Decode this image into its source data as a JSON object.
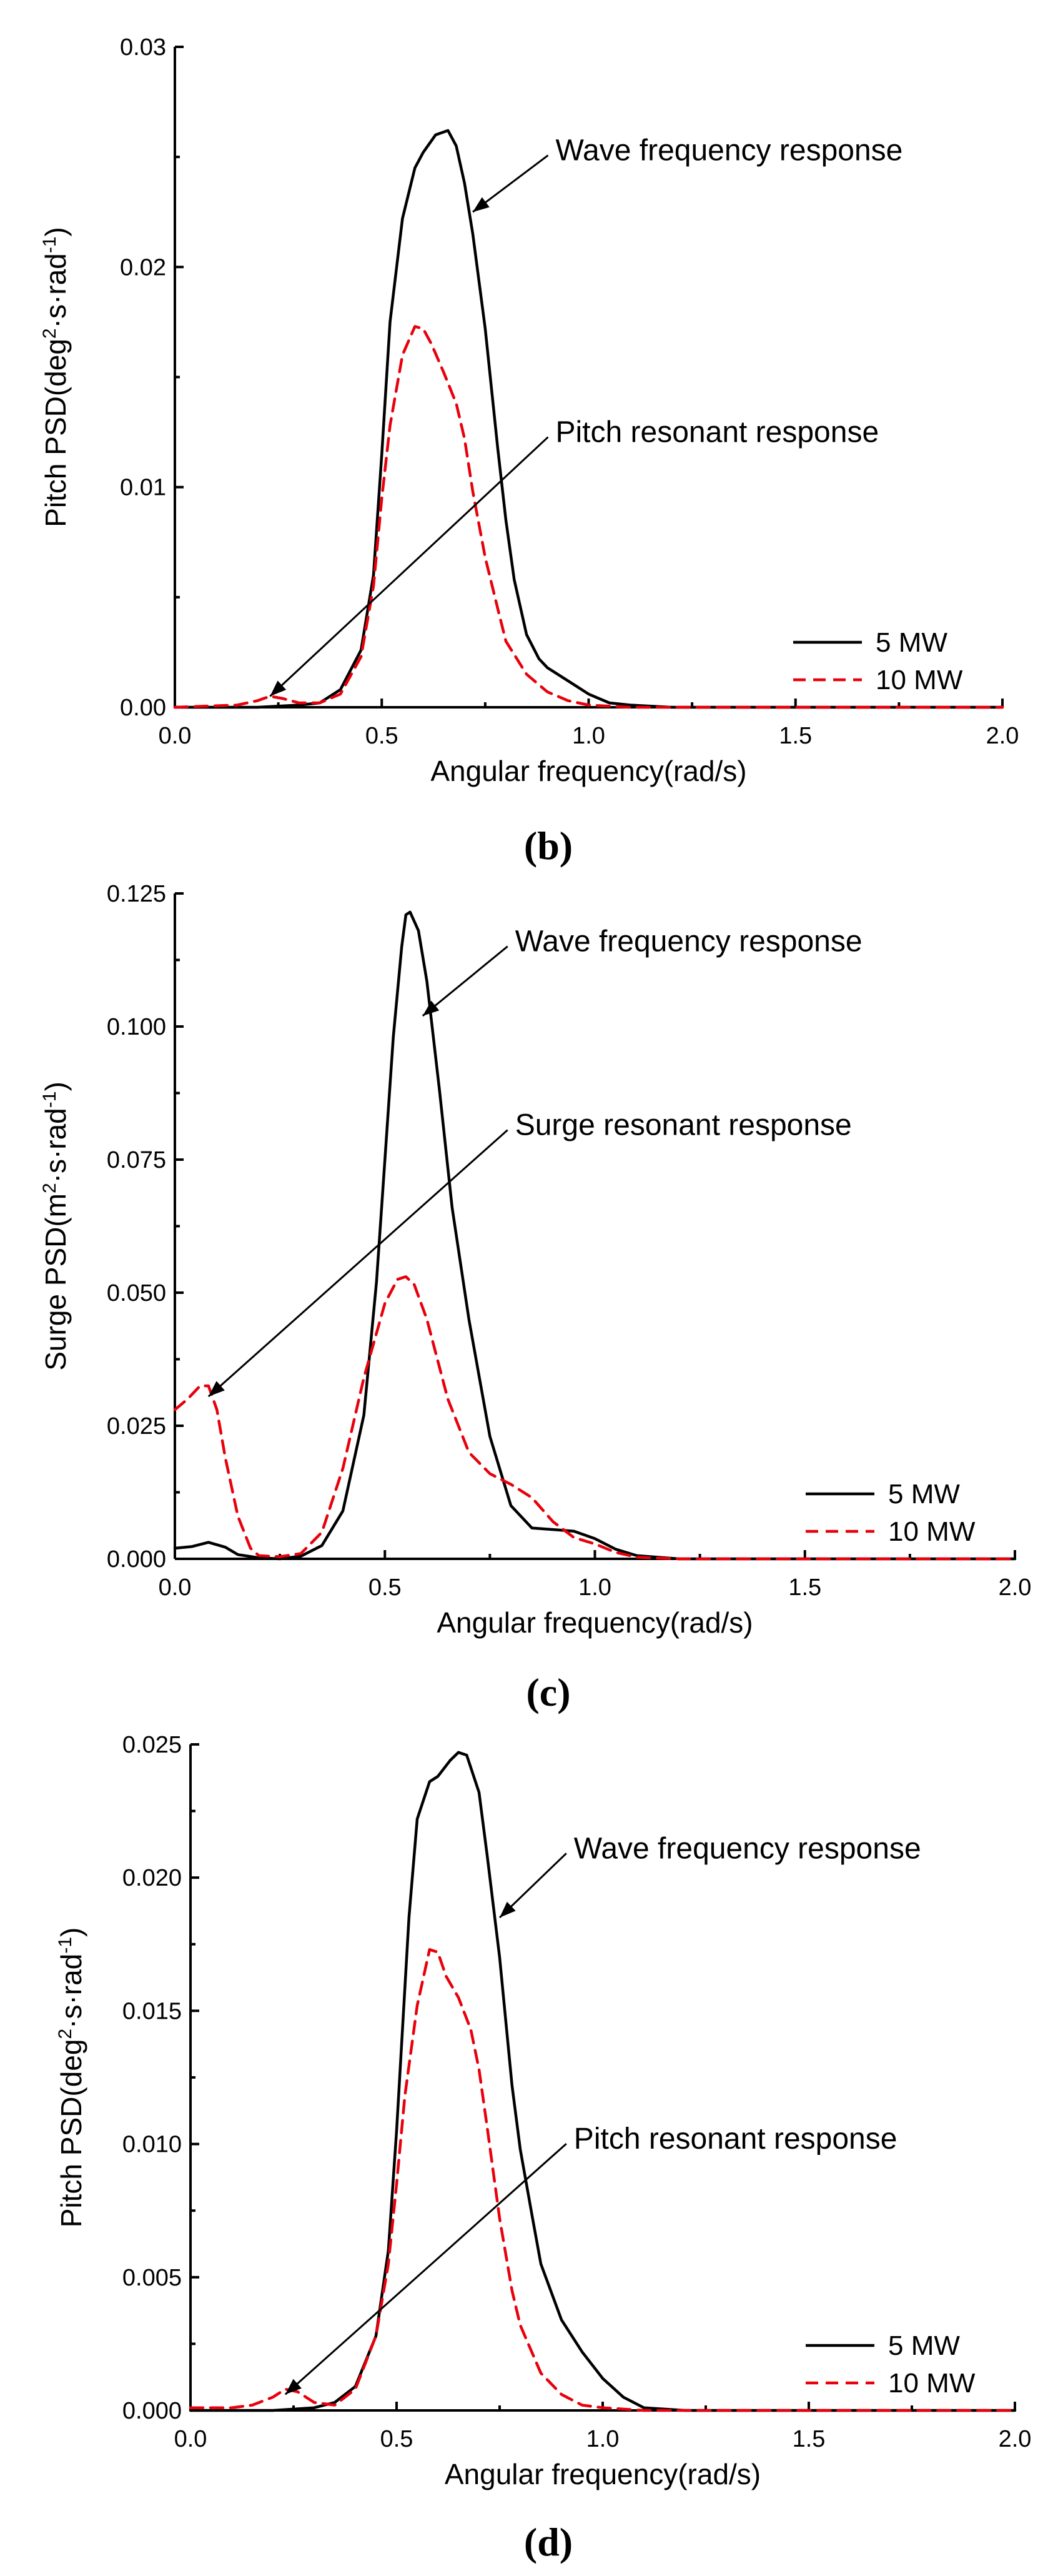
{
  "chart_data": [
    {
      "type": "line",
      "panel_label": "(b)",
      "xlabel": "Angular frequency(rad/s)",
      "ylabel": "Pitch PSD(deg²·s·rad⁻¹)",
      "ylabel_parts": [
        "Pitch PSD(deg",
        "2",
        "·s·rad",
        "-1",
        ")"
      ],
      "xlim": [
        0,
        2.0
      ],
      "ylim": [
        0,
        0.03
      ],
      "xticks": [
        "0.0",
        "0.5",
        "1.0",
        "1.5",
        "2.0"
      ],
      "xtick_values": [
        0,
        0.5,
        1.0,
        1.5,
        2.0
      ],
      "yticks": [
        "0.00",
        "0.01",
        "0.02",
        "0.03"
      ],
      "ytick_values": [
        0,
        0.01,
        0.02,
        0.03
      ],
      "legend": {
        "position": "bottom-right",
        "entries": [
          "5 MW",
          "10 MW"
        ]
      },
      "annotations": [
        {
          "text": "Wave frequency response",
          "xy": [
            0.72,
            0.0225
          ],
          "text_xy": [
            0.92,
            0.0253
          ]
        },
        {
          "text": "Pitch resonant response",
          "xy": [
            0.23,
            0.0005
          ],
          "text_xy": [
            0.92,
            0.0125
          ]
        }
      ],
      "series": [
        {
          "name": "5 MW",
          "color": "#000000",
          "dash": "solid",
          "x": [
            0,
            0.2,
            0.3,
            0.35,
            0.4,
            0.45,
            0.48,
            0.5,
            0.52,
            0.55,
            0.58,
            0.6,
            0.63,
            0.66,
            0.68,
            0.7,
            0.72,
            0.75,
            0.78,
            0.8,
            0.82,
            0.85,
            0.88,
            0.9,
            0.95,
            1.0,
            1.05,
            1.1,
            1.2,
            1.5,
            2.0
          ],
          "y": [
            0,
            0,
            0.0001,
            0.0002,
            0.0008,
            0.0026,
            0.006,
            0.0115,
            0.0175,
            0.0222,
            0.0245,
            0.0252,
            0.026,
            0.0262,
            0.0255,
            0.0238,
            0.0215,
            0.0172,
            0.0118,
            0.0085,
            0.0058,
            0.0033,
            0.0022,
            0.0018,
            0.0012,
            0.0006,
            0.0002,
            0.0001,
            0,
            0,
            0
          ]
        },
        {
          "name": "10 MW",
          "color": "#e8000b",
          "dash": "dashed",
          "x": [
            0,
            0.15,
            0.2,
            0.23,
            0.26,
            0.3,
            0.35,
            0.4,
            0.45,
            0.48,
            0.5,
            0.52,
            0.55,
            0.58,
            0.6,
            0.62,
            0.65,
            0.68,
            0.7,
            0.72,
            0.75,
            0.78,
            0.8,
            0.85,
            0.9,
            0.95,
            1.0,
            1.1,
            2.0
          ],
          "y": [
            0,
            0.0001,
            0.0003,
            0.0005,
            0.0004,
            0.0002,
            0.0002,
            0.0006,
            0.0023,
            0.0055,
            0.0095,
            0.0128,
            0.016,
            0.0173,
            0.0172,
            0.0165,
            0.0152,
            0.0138,
            0.0122,
            0.0098,
            0.0068,
            0.0045,
            0.003,
            0.0015,
            0.0007,
            0.0003,
            0.0001,
            0,
            0
          ]
        }
      ]
    },
    {
      "type": "line",
      "panel_label": "(c)",
      "xlabel": "Angular frequency(rad/s)",
      "ylabel": "Surge PSD(m²·s·rad⁻¹)",
      "ylabel_parts": [
        "Surge PSD(m",
        "2",
        "·s·rad",
        "-1",
        ")"
      ],
      "xlim": [
        0,
        2.0
      ],
      "ylim": [
        0,
        0.125
      ],
      "xticks": [
        "0.0",
        "0.5",
        "1.0",
        "1.5",
        "2.0"
      ],
      "xtick_values": [
        0,
        0.5,
        1.0,
        1.5,
        2.0
      ],
      "yticks": [
        "0.000",
        "0.025",
        "0.050",
        "0.075",
        "0.100",
        "0.125"
      ],
      "ytick_values": [
        0,
        0.025,
        0.05,
        0.075,
        0.1,
        0.125
      ],
      "legend": {
        "position": "bottom-right",
        "entries": [
          "5 MW",
          "10 MW"
        ]
      },
      "annotations": [
        {
          "text": "Wave frequency response",
          "xy": [
            0.59,
            0.102
          ],
          "text_xy": [
            0.81,
            0.116
          ]
        },
        {
          "text": "Surge resonant response",
          "xy": [
            0.08,
            0.0305
          ],
          "text_xy": [
            0.81,
            0.0815
          ]
        }
      ],
      "series": [
        {
          "name": "5 MW",
          "color": "#000000",
          "dash": "solid",
          "x": [
            0,
            0.04,
            0.08,
            0.12,
            0.15,
            0.2,
            0.25,
            0.3,
            0.35,
            0.4,
            0.45,
            0.48,
            0.5,
            0.52,
            0.54,
            0.55,
            0.56,
            0.58,
            0.6,
            0.63,
            0.66,
            0.7,
            0.75,
            0.8,
            0.85,
            0.9,
            0.95,
            1.0,
            1.05,
            1.1,
            1.2,
            2.0
          ],
          "y": [
            0.002,
            0.0023,
            0.0031,
            0.0022,
            0.0008,
            0.0002,
            0,
            0.0005,
            0.0025,
            0.009,
            0.027,
            0.052,
            0.075,
            0.098,
            0.115,
            0.121,
            0.1215,
            0.118,
            0.1085,
            0.088,
            0.066,
            0.045,
            0.023,
            0.01,
            0.0058,
            0.0055,
            0.0052,
            0.0038,
            0.0018,
            0.0006,
            0,
            0
          ]
        },
        {
          "name": "10 MW",
          "color": "#e8000b",
          "dash": "dashed",
          "x": [
            0,
            0.03,
            0.06,
            0.08,
            0.1,
            0.12,
            0.15,
            0.18,
            0.2,
            0.25,
            0.3,
            0.35,
            0.4,
            0.45,
            0.5,
            0.53,
            0.55,
            0.57,
            0.6,
            0.65,
            0.7,
            0.75,
            0.8,
            0.85,
            0.9,
            0.95,
            1.0,
            1.05,
            1.1,
            1.2,
            2.0
          ],
          "y": [
            0.028,
            0.03,
            0.0325,
            0.0325,
            0.028,
            0.019,
            0.008,
            0.002,
            0.0006,
            0.0004,
            0.001,
            0.005,
            0.017,
            0.034,
            0.048,
            0.0525,
            0.053,
            0.0515,
            0.045,
            0.03,
            0.02,
            0.016,
            0.014,
            0.0115,
            0.007,
            0.004,
            0.0028,
            0.0012,
            0.0003,
            0,
            0
          ]
        }
      ]
    },
    {
      "type": "line",
      "panel_label": "(d)",
      "xlabel": "Angular frequency(rad/s)",
      "ylabel": "Pitch PSD(deg²·s·rad⁻¹)",
      "ylabel_parts": [
        "Pitch PSD(deg",
        "2",
        "·s·rad",
        "-1",
        ")"
      ],
      "xlim": [
        0,
        2.0
      ],
      "ylim": [
        0,
        0.025
      ],
      "xticks": [
        "0.0",
        "0.5",
        "1.0",
        "1.5",
        "2.0"
      ],
      "xtick_values": [
        0,
        0.5,
        1.0,
        1.5,
        2.0
      ],
      "yticks": [
        "0.000",
        "0.005",
        "0.010",
        "0.015",
        "0.020",
        "0.025"
      ],
      "ytick_values": [
        0,
        0.005,
        0.01,
        0.015,
        0.02,
        0.025
      ],
      "legend": {
        "position": "bottom-right",
        "entries": [
          "5 MW",
          "10 MW"
        ]
      },
      "annotations": [
        {
          "text": "Wave frequency response",
          "xy": [
            0.75,
            0.0185
          ],
          "text_xy": [
            0.93,
            0.0211
          ]
        },
        {
          "text": "Pitch resonant response",
          "xy": [
            0.23,
            0.0006
          ],
          "text_xy": [
            0.93,
            0.0102
          ]
        }
      ],
      "series": [
        {
          "name": "5 MW",
          "color": "#000000",
          "dash": "solid",
          "x": [
            0,
            0.2,
            0.3,
            0.35,
            0.4,
            0.45,
            0.48,
            0.5,
            0.53,
            0.55,
            0.58,
            0.6,
            0.63,
            0.65,
            0.67,
            0.7,
            0.72,
            0.75,
            0.78,
            0.8,
            0.83,
            0.85,
            0.9,
            0.95,
            1.0,
            1.05,
            1.1,
            1.2,
            2.0
          ],
          "y": [
            0,
            0,
            0.0001,
            0.0003,
            0.0009,
            0.0028,
            0.006,
            0.0105,
            0.0185,
            0.0222,
            0.0236,
            0.0238,
            0.0244,
            0.0247,
            0.0246,
            0.0232,
            0.0208,
            0.017,
            0.0122,
            0.0098,
            0.0072,
            0.0055,
            0.0034,
            0.0022,
            0.0012,
            0.0005,
            0.0001,
            0,
            0
          ]
        },
        {
          "name": "10 MW",
          "color": "#e8000b",
          "dash": "dashed",
          "x": [
            0,
            0.1,
            0.15,
            0.2,
            0.23,
            0.26,
            0.3,
            0.35,
            0.4,
            0.45,
            0.48,
            0.5,
            0.52,
            0.55,
            0.58,
            0.6,
            0.62,
            0.65,
            0.68,
            0.7,
            0.72,
            0.75,
            0.78,
            0.8,
            0.85,
            0.9,
            0.95,
            1.0,
            1.1,
            2.0
          ],
          "y": [
            0.0001,
            0.0001,
            0.0002,
            0.0005,
            0.0008,
            0.0007,
            0.0003,
            0.0002,
            0.0008,
            0.0028,
            0.0055,
            0.0085,
            0.0118,
            0.0152,
            0.0173,
            0.0172,
            0.0163,
            0.0155,
            0.0143,
            0.0128,
            0.0106,
            0.0072,
            0.0045,
            0.0032,
            0.0014,
            0.0006,
            0.0002,
            0.0001,
            0,
            0
          ]
        }
      ]
    }
  ]
}
